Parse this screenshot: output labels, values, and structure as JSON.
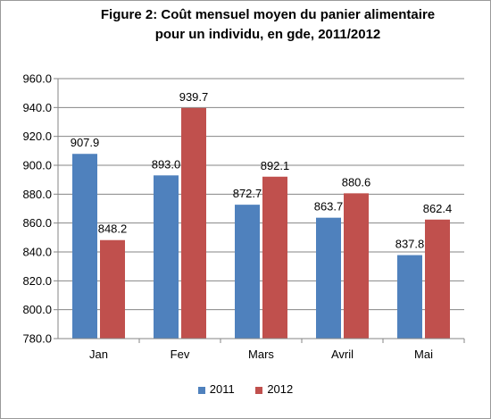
{
  "chart_data": {
    "type": "bar",
    "title_line1": "Figure 2: Coût mensuel moyen du panier alimentaire",
    "title_line2": "pour un individu, en gde, 2011/2012",
    "categories": [
      "Jan",
      "Fev",
      "Mars",
      "Avril",
      "Mai"
    ],
    "series": [
      {
        "name": "2011",
        "values": [
          907.9,
          893.0,
          872.7,
          863.7,
          837.8
        ],
        "color": "#4f81bd"
      },
      {
        "name": "2012",
        "values": [
          848.2,
          939.7,
          892.1,
          880.6,
          862.4
        ],
        "color": "#c0504d"
      }
    ],
    "ylim": [
      780,
      960
    ],
    "yticks": [
      780,
      800,
      820,
      840,
      860,
      880,
      900,
      920,
      940,
      960
    ],
    "grid": true,
    "legend_position": "bottom"
  }
}
